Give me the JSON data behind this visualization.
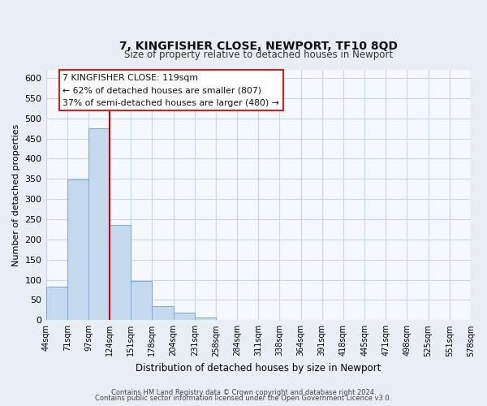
{
  "title": "7, KINGFISHER CLOSE, NEWPORT, TF10 8QD",
  "subtitle": "Size of property relative to detached houses in Newport",
  "xlabel": "Distribution of detached houses by size in Newport",
  "ylabel": "Number of detached properties",
  "bar_values": [
    83,
    349,
    476,
    236,
    97,
    35,
    18,
    7,
    0,
    0,
    0,
    1,
    0,
    0,
    0,
    0,
    1,
    0,
    0,
    1
  ],
  "bin_labels": [
    "44sqm",
    "71sqm",
    "97sqm",
    "124sqm",
    "151sqm",
    "178sqm",
    "204sqm",
    "231sqm",
    "258sqm",
    "284sqm",
    "311sqm",
    "338sqm",
    "364sqm",
    "391sqm",
    "418sqm",
    "445sqm",
    "471sqm",
    "498sqm",
    "525sqm",
    "551sqm",
    "578sqm"
  ],
  "bar_color": "#c5d9ee",
  "bar_edge_color": "#7aaace",
  "vline_color": "#cc0000",
  "vline_pos": 2.5,
  "ylim": [
    0,
    620
  ],
  "yticks": [
    0,
    50,
    100,
    150,
    200,
    250,
    300,
    350,
    400,
    450,
    500,
    550,
    600
  ],
  "annotation_title": "7 KINGFISHER CLOSE: 119sqm",
  "annotation_line1": "← 62% of detached houses are smaller (807)",
  "annotation_line2": "37% of semi-detached houses are larger (480) →",
  "footer1": "Contains HM Land Registry data © Crown copyright and database right 2024.",
  "footer2": "Contains public sector information licensed under the Open Government Licence v3.0.",
  "background_color": "#e8eef4",
  "plot_background_color": "#f5f8fc",
  "grid_color": "#c8d8e8"
}
